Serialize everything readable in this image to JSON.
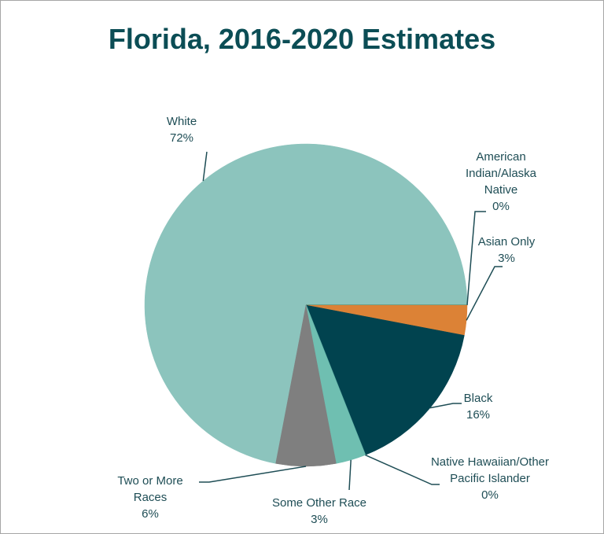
{
  "chart_data": {
    "type": "pie",
    "title": "Florida, 2016-2020 Estimates",
    "categories": [
      "White",
      "American Indian/Alaska Native",
      "Asian Only",
      "Black",
      "Native Hawaiian/Other Pacific Islander",
      "Some Other Race",
      "Two or More Races"
    ],
    "values": [
      72,
      0,
      3,
      16,
      0,
      3,
      6
    ],
    "value_labels": [
      "72%",
      "0%",
      "3%",
      "16%",
      "0%",
      "3%",
      "6%"
    ],
    "colors": [
      "#8cc4bd",
      "#2f9b94",
      "#dc8236",
      "#01434f",
      "#5aa99f",
      "#6fbfb1",
      "#7f7f7f"
    ]
  }
}
